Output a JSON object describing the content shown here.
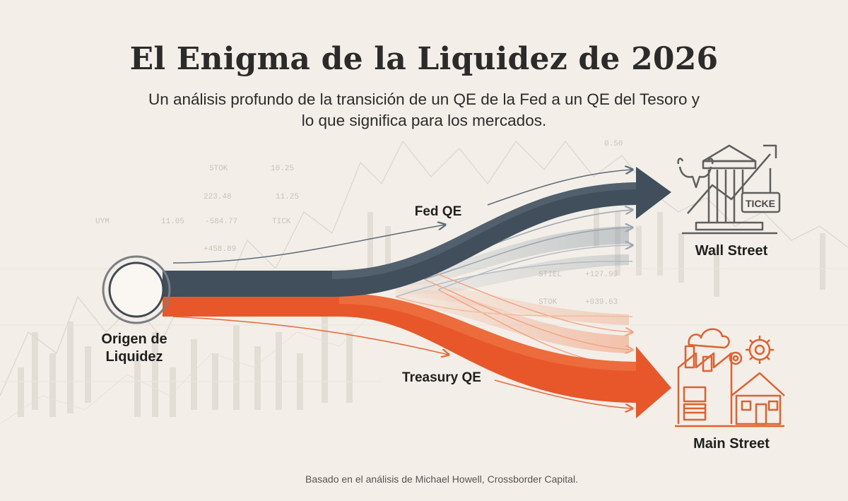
{
  "header": {
    "title": "El Enigma de la Liquidez de 2026",
    "subtitle_line1": "Un análisis profundo de la transición de un QE de la Fed a un QE del Tesoro y",
    "subtitle_line2": "lo que significa para los mercados."
  },
  "nodes": {
    "origin": {
      "line1": "Origen de",
      "line2": "Liquidez"
    },
    "fed_flow": "Fed QE",
    "treasury_flow": "Treasury QE",
    "wall_street": "Wall Street",
    "main_street": "Main Street",
    "ticker_sign": "TICKE"
  },
  "background_ticker": [
    "STOK",
    "10.25",
    "223.48",
    "11.25",
    "UYM",
    "11.05",
    "-584.77",
    "TICK",
    "+458.89",
    "STIEL",
    "+127.99",
    "STOK",
    "+039.63",
    "0.50"
  ],
  "footer": "Basado en el análisis de Michael Howell, Crossborder Capital.",
  "colors": {
    "background": "#f3efe8",
    "fed_arrow": "#414f5c",
    "treasury_arrow": "#e8572a",
    "icon_gray": "#5f5f5f",
    "icon_orange": "#e0612f"
  }
}
